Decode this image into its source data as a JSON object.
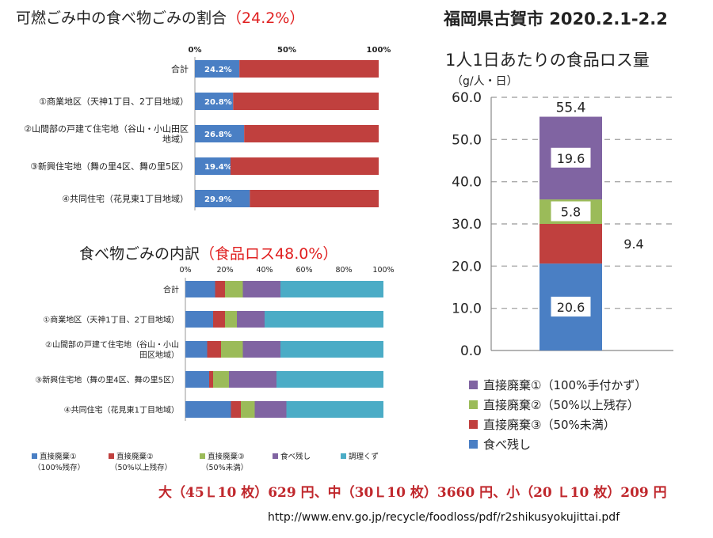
{
  "header": {
    "chart1_title_main": "可燃ごみ中の食べ物ごみの割合",
    "chart1_title_highlight": "（24.2%）",
    "chart2_title_main": "食べ物ごみの内訳",
    "chart2_title_highlight": "（食品ロス48.0%）",
    "city_title": "福岡県古賀市 2020.2.1-2.2",
    "chart3_title": "1人1日あたりの食品ロス量",
    "chart3_unit": "（g/人・日）"
  },
  "colors": {
    "blue": "#4a7fc4",
    "red": "#c0403e",
    "green": "#9bbb59",
    "purple": "#8064a2",
    "teal": "#4bacc6",
    "highlight_red": "#e02020"
  },
  "footer": {
    "price_text": "大（45Ｌ10 枚）629 円、中（30Ｌ10 枚）3660 円、小（20 Ｌ10 枚）209 円",
    "source_url": "http://www.env.go.jp/recycle/foodloss/pdf/r2shikusyokujittai.pdf"
  },
  "chart_data": [
    {
      "type": "bar",
      "orientation": "horizontal",
      "stacked": true,
      "title": "可燃ごみ中の食べ物ごみの割合（24.2%）",
      "x_ticks": [
        "0%",
        "50%",
        "100%"
      ],
      "xlim": [
        0,
        100
      ],
      "categories": [
        "合計",
        "①商業地区（天神1丁目、2丁目地域）",
        "②山間部の戸建て住宅地（谷山・小山田区\n地域）",
        "③新興住宅地（舞の里4区、舞の里5区）",
        "④共同住宅（花見東1丁目地域）"
      ],
      "series": [
        {
          "values": [
            24.2,
            20.8,
            26.8,
            19.4,
            29.9
          ],
          "labels": [
            "24.2%",
            "20.8%",
            "26.8%",
            "19.4%",
            "29.9%"
          ],
          "color": "#4a7fc4"
        },
        {
          "values": [
            75.8,
            79.2,
            73.2,
            80.6,
            70.1
          ],
          "color": "#c0403e"
        }
      ]
    },
    {
      "type": "bar",
      "orientation": "horizontal",
      "stacked": true,
      "title": "食べ物ごみの内訳（食品ロス48.0%）",
      "x_ticks": [
        "0%",
        "20%",
        "40%",
        "60%",
        "80%",
        "100%"
      ],
      "xlim": [
        0,
        100
      ],
      "categories": [
        "合計",
        "①商業地区（天神1丁目、2丁目地域）",
        "②山間部の戸建て住宅地（谷山・小山\n田区地域）",
        "③新興住宅地（舞の里4区、舞の里5区）",
        "④共同住宅（花見東1丁目地域）"
      ],
      "series": [
        {
          "name": "直接廃棄①\n（100%残存）",
          "color": "#4a7fc4",
          "values": [
            15,
            14,
            11,
            12,
            23
          ]
        },
        {
          "name": "直接廃棄②\n（50%以上残存）",
          "color": "#c0403e",
          "values": [
            5,
            6,
            7,
            2,
            5
          ]
        },
        {
          "name": "直接廃棄③\n（50%未満）",
          "color": "#9bbb59",
          "values": [
            9,
            6,
            11,
            8,
            7
          ]
        },
        {
          "name": "食べ残し",
          "color": "#8064a2",
          "values": [
            19,
            14,
            19,
            24,
            16
          ]
        },
        {
          "name": "調理くず",
          "color": "#4bacc6",
          "values": [
            52,
            60,
            52,
            54,
            49
          ]
        }
      ],
      "legend_position": "bottom"
    },
    {
      "type": "bar",
      "stacked": true,
      "title": "1人1日あたりの食品ロス量",
      "ylabel": "（g/人・日）",
      "ylim": [
        0,
        60
      ],
      "y_ticks": [
        "0.0",
        "10.0",
        "20.0",
        "30.0",
        "40.0",
        "50.0",
        "60.0"
      ],
      "total_label": "55.4",
      "series": [
        {
          "name": "食べ残し",
          "color": "#4a7fc4",
          "value": 20.6,
          "label": "20.6"
        },
        {
          "name": "直接廃棄③（50%未満）",
          "color": "#c0403e",
          "value": 9.4,
          "label": "9.4"
        },
        {
          "name": "直接廃棄②（50%以上残存）",
          "color": "#9bbb59",
          "value": 5.8,
          "label": "5.8"
        },
        {
          "name": "直接廃棄①（100%手付かず）",
          "color": "#8064a2",
          "value": 19.6,
          "label": "19.6"
        }
      ],
      "legend_order": [
        "直接廃棄①（100%手付かず）",
        "直接廃棄②（50%以上残存）",
        "直接廃棄③（50%未満）",
        "食べ残し"
      ],
      "grid": true
    }
  ]
}
